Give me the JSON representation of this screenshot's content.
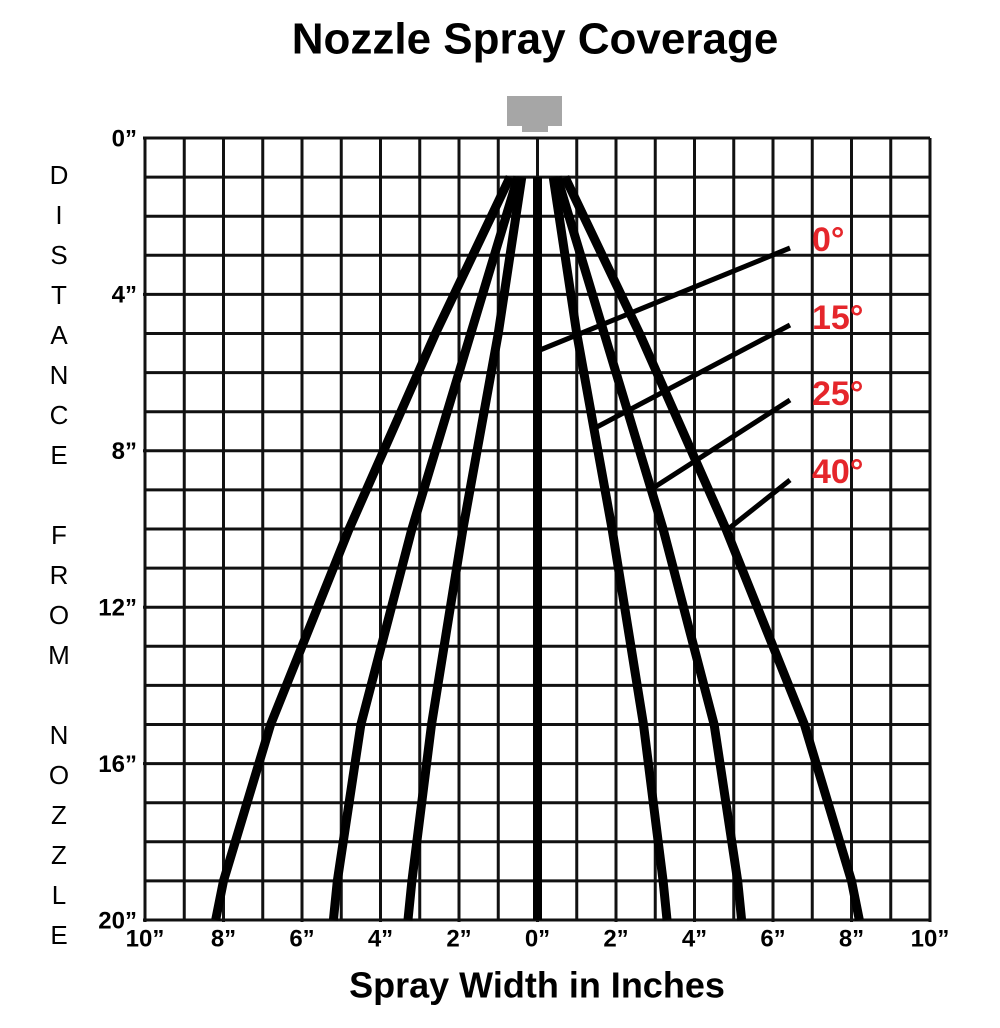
{
  "chart_data": {
    "type": "line",
    "title": "Nozzle Spray Coverage",
    "x_label": "Spray Width in Inches",
    "y_label": "DISTANCE FROM NOZZLE",
    "xlim": [
      -10,
      10
    ],
    "ylim": [
      0,
      20
    ],
    "y_inverted": true,
    "grid": true,
    "grid_step": 1,
    "xticks": [
      {
        "value": -10,
        "label": "10”"
      },
      {
        "value": -8,
        "label": "8”"
      },
      {
        "value": -6,
        "label": "6”"
      },
      {
        "value": -4,
        "label": "4”"
      },
      {
        "value": -2,
        "label": "2”"
      },
      {
        "value": 0,
        "label": "0”"
      },
      {
        "value": 2,
        "label": "2”"
      },
      {
        "value": 4,
        "label": "4”"
      },
      {
        "value": 6,
        "label": "6”"
      },
      {
        "value": 8,
        "label": "8”"
      },
      {
        "value": 10,
        "label": "10”"
      }
    ],
    "yticks": [
      {
        "value": 0,
        "label": "0”"
      },
      {
        "value": 4,
        "label": "4”"
      },
      {
        "value": 8,
        "label": "8”"
      },
      {
        "value": 12,
        "label": "12”"
      },
      {
        "value": 16,
        "label": "16”"
      },
      {
        "value": 20,
        "label": "20”"
      }
    ],
    "label_color": "#e5262b",
    "series": [
      {
        "name": "0°",
        "color": "#000000",
        "y": [
          1,
          20
        ],
        "x_left": [
          0,
          0
        ],
        "x_right": [
          0,
          0
        ]
      },
      {
        "name": "15°",
        "color": "#000000",
        "y": [
          1,
          5,
          10,
          15,
          19,
          20
        ],
        "x_left": [
          -0.4,
          -1.0,
          -1.9,
          -2.7,
          -3.2,
          -3.3
        ],
        "x_right": [
          0.4,
          1.0,
          1.9,
          2.7,
          3.2,
          3.3
        ]
      },
      {
        "name": "25°",
        "color": "#000000",
        "y": [
          1,
          5,
          10,
          15,
          19,
          20
        ],
        "x_left": [
          -0.5,
          -1.7,
          -3.2,
          -4.5,
          -5.1,
          -5.2
        ],
        "x_right": [
          0.5,
          1.7,
          3.2,
          4.5,
          5.1,
          5.2
        ]
      },
      {
        "name": "40°",
        "color": "#000000",
        "y": [
          1,
          5,
          10,
          15,
          19,
          20
        ],
        "x_left": [
          -0.7,
          -2.6,
          -4.8,
          -6.8,
          -8.0,
          -8.2
        ],
        "x_right": [
          0.7,
          2.6,
          4.8,
          6.8,
          8.0,
          8.2
        ]
      }
    ]
  }
}
